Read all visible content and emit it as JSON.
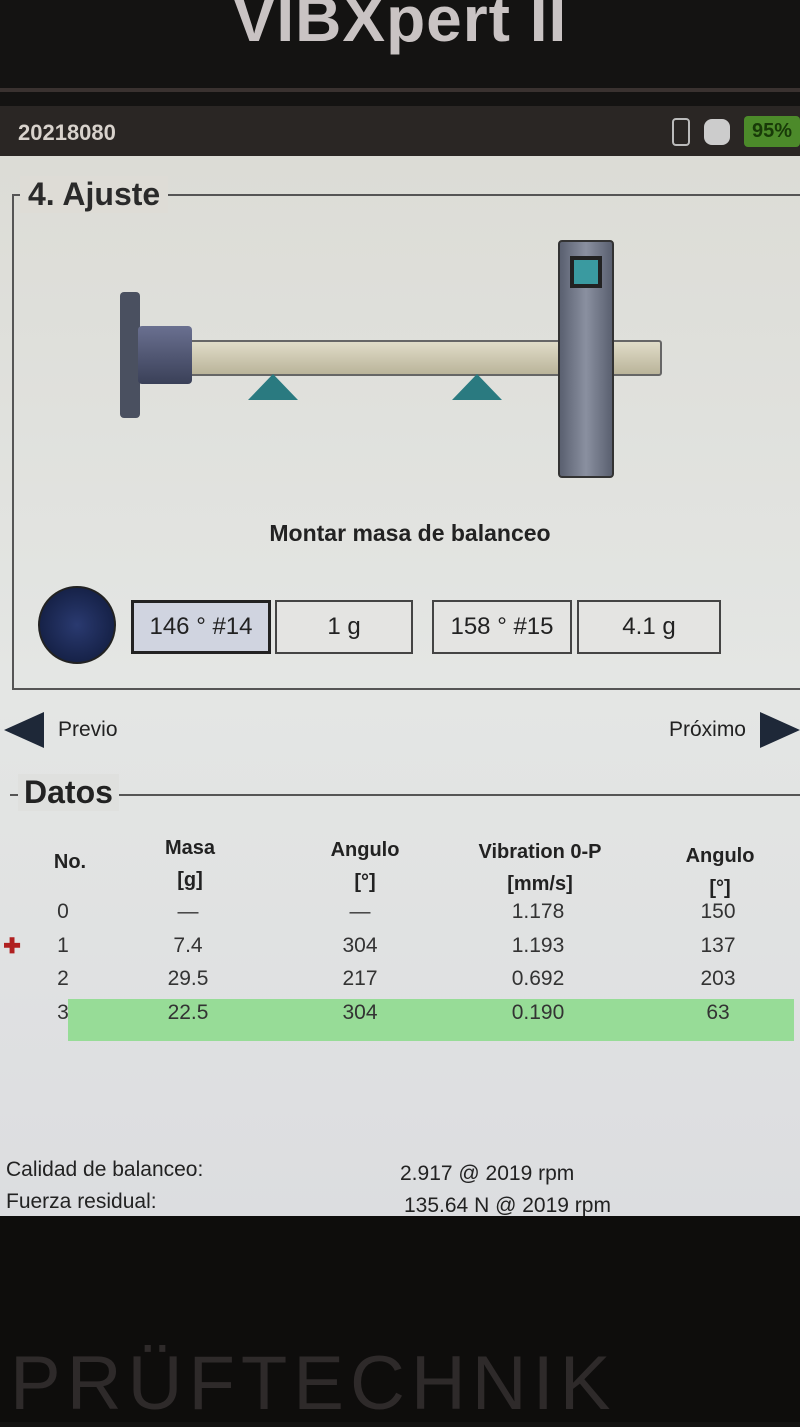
{
  "device": {
    "brand": "VIBXpert II",
    "maker": "PRÜFTECHNIK"
  },
  "status": {
    "id": "20218080",
    "battery": "95%"
  },
  "step": {
    "title": "4. Ajuste",
    "instruction": "Montar masa de balanceo",
    "positions": [
      {
        "angle": "146 ° #14",
        "mass": "1 g"
      },
      {
        "angle": "158 ° #15",
        "mass": "4.1 g"
      }
    ]
  },
  "nav": {
    "prev": "Previo",
    "next": "Próximo"
  },
  "datos": {
    "title": "Datos",
    "headers": [
      [
        "No.",
        ""
      ],
      [
        "Masa",
        "[g]"
      ],
      [
        "Angulo",
        "[°]"
      ],
      [
        "Vibration 0-P",
        "[mm/s]"
      ],
      [
        "Angulo",
        "[°]"
      ]
    ],
    "rows": [
      [
        "0",
        "—",
        "—",
        "1.178",
        "150"
      ],
      [
        "1",
        "7.4",
        "304",
        "1.193",
        "137"
      ],
      [
        "2",
        "29.5",
        "217",
        "0.692",
        "203"
      ],
      [
        "3",
        "22.5",
        "304",
        "0.190",
        "63"
      ]
    ],
    "highlight_row": 3,
    "highlight_color": "#8fdc8f"
  },
  "summary": [
    {
      "label": "Calidad de balanceo:",
      "value": "2.917 @ 2019 rpm"
    },
    {
      "label": "Fuerza residual:",
      "value": "135.64 N @ 2019 rpm"
    }
  ]
}
